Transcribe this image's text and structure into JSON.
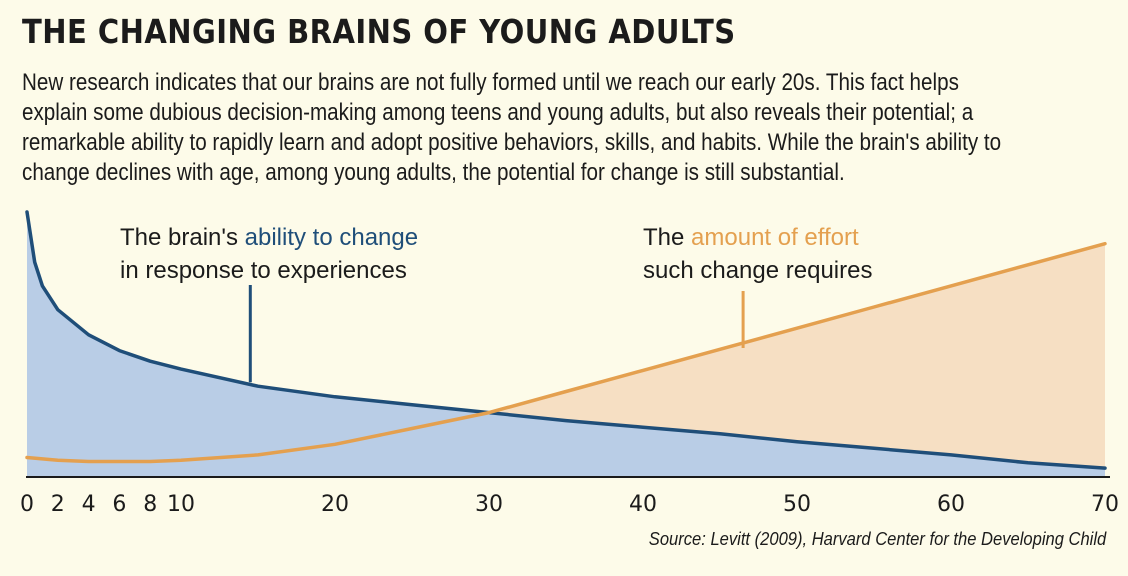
{
  "header": {
    "title": "THE CHANGING BRAINS OF YOUNG ADULTS",
    "subtitle": "New research indicates that our brains are not fully formed until we reach our early 20s. This fact helps explain some dubious decision-making among teens and young adults, but also reveals their potential; a remarkable ability to rapidly learn and adopt positive behaviors, skills, and habits. While the brain's ability to change declines with age, among young adults, the potential for change is still substantial."
  },
  "chart_data": {
    "type": "area",
    "title": "THE CHANGING BRAINS OF YOUNG ADULTS",
    "xlabel": "",
    "ylabel": "",
    "xlim": [
      0,
      70
    ],
    "ylim": [
      0,
      100
    ],
    "grid": false,
    "legend": "none",
    "x_ticks": [
      0,
      2,
      4,
      6,
      8,
      10,
      20,
      30,
      40,
      50,
      60,
      70
    ],
    "series": [
      {
        "name": "ability to change",
        "color": "#1f4e79",
        "fill": "#b9cde6",
        "x": [
          0,
          0.5,
          1,
          2,
          4,
          6,
          8,
          10,
          15,
          20,
          25,
          30,
          35,
          40,
          45,
          50,
          55,
          60,
          65,
          70
        ],
        "y": [
          100,
          81,
          72,
          63,
          53.5,
          47.5,
          43.5,
          40.5,
          34,
          30,
          27,
          24,
          21,
          18.5,
          16,
          13,
          10.5,
          8,
          5,
          3
        ]
      },
      {
        "name": "amount of effort",
        "color": "#e4a04f",
        "fill": "#f6dfc3",
        "x": [
          0,
          2,
          4,
          6,
          8,
          10,
          15,
          20,
          25,
          30,
          35,
          40,
          45,
          50,
          55,
          60,
          65,
          70
        ],
        "y": [
          7,
          6,
          5.5,
          5.5,
          5.5,
          6,
          8,
          12,
          18,
          24,
          32,
          40,
          48,
          56,
          64,
          72,
          80,
          88
        ]
      }
    ],
    "annotations": [
      {
        "series": 0,
        "x": 14.5,
        "y": 35.5,
        "parts": [
          "The brain's ",
          "ability to change",
          "in response to experiences"
        ]
      },
      {
        "series": 1,
        "x": 46.5,
        "y": 48.5,
        "parts": [
          "The ",
          "amount of effort",
          "such change requires"
        ]
      }
    ],
    "source": "Source: Levitt (2009), Harvard Center for the Developing Child"
  }
}
